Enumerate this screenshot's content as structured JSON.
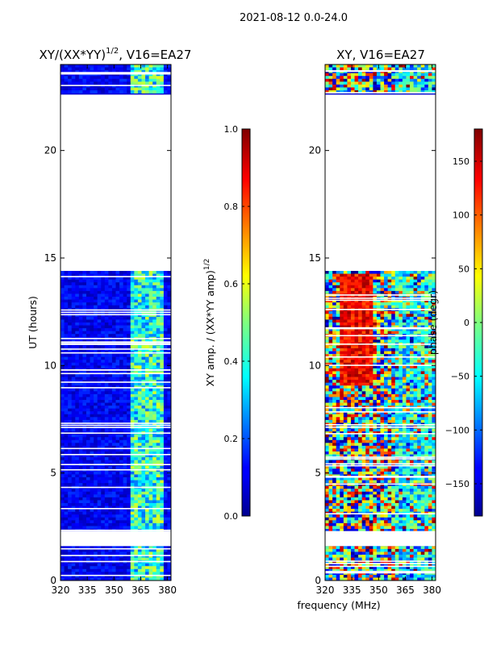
{
  "figure": {
    "suptitle": "2021-08-12 0.0-24.0",
    "xlabel": "frequency (MHz)"
  },
  "chart_data": [
    {
      "type": "heatmap",
      "title": "XY/(XX*YY)^(1/2), V16=EA27",
      "title_main": "XY/(XX*YY)",
      "title_sup": "1/2",
      "title_rest": ", V16=EA27",
      "ylabel": "UT (hours)",
      "xlim": [
        320,
        382
      ],
      "ylim": [
        0,
        24
      ],
      "xticks": [
        320,
        335,
        350,
        365,
        380
      ],
      "xtick_labels": [
        "320",
        "335",
        "350",
        "365",
        "380"
      ],
      "yticks": [
        0,
        5,
        10,
        15,
        20
      ],
      "ytick_labels": [
        "0",
        "5",
        "10",
        "15",
        "20"
      ],
      "data_gaps_hours": [
        [
          1.6,
          2.3
        ],
        [
          14.4,
          22.6
        ]
      ],
      "colorbar": {
        "label_main": "XY amp. / (XX*YY amp)",
        "label_sup": "1/2",
        "range": [
          0.0,
          1.0
        ],
        "ticks": [
          0.0,
          0.2,
          0.4,
          0.6,
          0.8,
          1.0
        ],
        "tick_labels": [
          "0.0",
          "0.2",
          "0.4",
          "0.6",
          "0.8",
          "1.0"
        ],
        "colormap": "jet"
      }
    },
    {
      "type": "heatmap",
      "title": "XY, V16=EA27",
      "ylabel": "phase (degr)",
      "xlim": [
        320,
        382
      ],
      "ylim": [
        0,
        24
      ],
      "xticks": [
        320,
        335,
        350,
        365,
        380
      ],
      "xtick_labels": [
        "320",
        "335",
        "350",
        "365",
        "380"
      ],
      "yticks": [
        0,
        5,
        10,
        15,
        20
      ],
      "ytick_labels": [
        "0",
        "5",
        "10",
        "15",
        "20"
      ],
      "data_gaps_hours": [
        [
          1.6,
          2.3
        ],
        [
          14.4,
          22.6
        ]
      ],
      "colorbar": {
        "range": [
          -180,
          180
        ],
        "ticks": [
          -150,
          -100,
          -50,
          0,
          50,
          100,
          150
        ],
        "tick_labels": [
          "−150",
          "−100",
          "−50",
          "0",
          "50",
          "100",
          "150"
        ],
        "colormap": "jet"
      }
    }
  ]
}
